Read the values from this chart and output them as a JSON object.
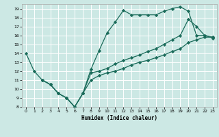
{
  "xlabel": "Humidex (Indice chaleur)",
  "background_color": "#cce8e4",
  "grid_color": "#ffffff",
  "line_color": "#1a6b5a",
  "xlim": [
    -0.5,
    23.5
  ],
  "ylim": [
    8,
    19.5
  ],
  "xticks": [
    0,
    1,
    2,
    3,
    4,
    5,
    6,
    7,
    8,
    9,
    10,
    11,
    12,
    13,
    14,
    15,
    16,
    17,
    18,
    19,
    20,
    21,
    22,
    23
  ],
  "yticks": [
    8,
    9,
    10,
    11,
    12,
    13,
    14,
    15,
    16,
    17,
    18,
    19
  ],
  "line1_x": [
    0,
    1,
    2,
    3,
    4,
    5,
    6,
    7,
    8,
    9,
    10,
    11,
    12,
    13,
    14,
    15,
    16,
    17,
    18,
    19,
    20,
    21,
    22,
    23
  ],
  "line1_y": [
    14,
    12,
    11,
    10.5,
    9.5,
    9.0,
    8.0,
    9.5,
    12.2,
    14.3,
    16.3,
    17.5,
    18.8,
    18.3,
    18.3,
    18.3,
    18.3,
    18.7,
    19.0,
    19.2,
    18.7,
    16.0,
    16.0,
    15.7
  ],
  "line2_x": [
    2,
    3,
    4,
    5,
    6,
    7,
    8,
    9,
    10,
    11,
    12,
    13,
    14,
    15,
    16,
    17,
    18,
    19,
    20,
    21,
    22,
    23
  ],
  "line2_y": [
    11.0,
    10.5,
    9.5,
    9.0,
    8.0,
    9.5,
    11.8,
    12.0,
    12.3,
    12.8,
    13.2,
    13.5,
    13.8,
    14.2,
    14.5,
    15.0,
    15.5,
    16.0,
    17.8,
    17.0,
    16.0,
    15.8
  ],
  "line3_x": [
    2,
    3,
    4,
    5,
    6,
    7,
    8,
    9,
    10,
    11,
    12,
    13,
    14,
    15,
    16,
    17,
    18,
    19,
    20,
    21,
    22,
    23
  ],
  "line3_y": [
    11.0,
    10.5,
    9.5,
    9.0,
    8.0,
    9.5,
    11.0,
    11.5,
    11.8,
    12.0,
    12.3,
    12.7,
    13.0,
    13.2,
    13.5,
    13.8,
    14.2,
    14.5,
    15.2,
    15.5,
    15.8,
    15.8
  ]
}
